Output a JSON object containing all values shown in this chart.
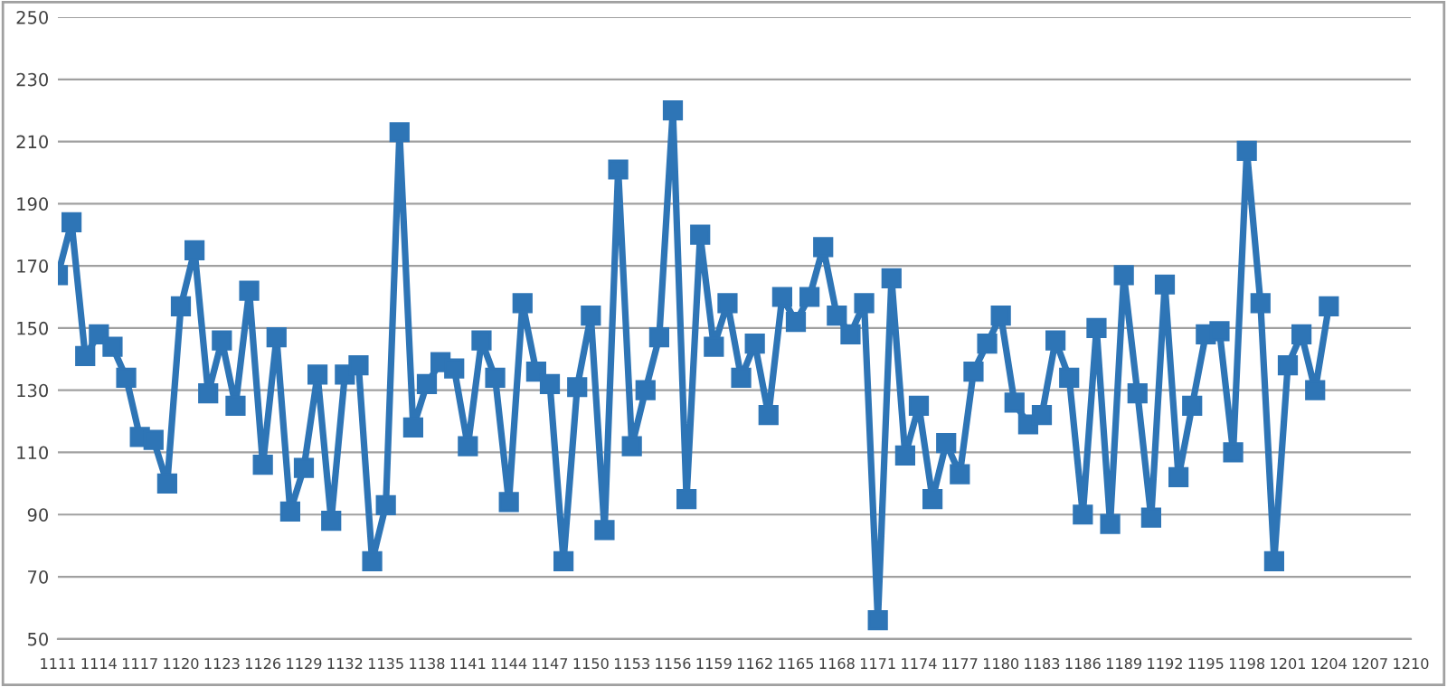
{
  "chart_data": {
    "type": "line",
    "x": [
      1111,
      1112,
      1113,
      1114,
      1115,
      1116,
      1117,
      1118,
      1119,
      1120,
      1121,
      1122,
      1123,
      1124,
      1125,
      1126,
      1127,
      1128,
      1129,
      1130,
      1131,
      1132,
      1133,
      1134,
      1135,
      1136,
      1137,
      1138,
      1139,
      1140,
      1141,
      1142,
      1143,
      1144,
      1145,
      1146,
      1147,
      1148,
      1149,
      1150,
      1151,
      1152,
      1153,
      1154,
      1155,
      1156,
      1157,
      1158,
      1159,
      1160,
      1161,
      1162,
      1163,
      1164,
      1165,
      1166,
      1167,
      1168,
      1169,
      1170,
      1171,
      1172,
      1173,
      1174,
      1175,
      1176,
      1177,
      1178,
      1179,
      1180,
      1181,
      1182,
      1183,
      1184,
      1185,
      1186,
      1187,
      1188,
      1189,
      1190,
      1191,
      1192,
      1193,
      1194,
      1195,
      1196,
      1197,
      1198,
      1199,
      1200,
      1201,
      1202,
      1203,
      1204
    ],
    "series": [
      {
        "color": "#2e75b6",
        "values": [
          167,
          184,
          141,
          148,
          144,
          134,
          115,
          114,
          100,
          157,
          175,
          129,
          146,
          125,
          162,
          106,
          147,
          91,
          105,
          135,
          88,
          135,
          138,
          75,
          93,
          213,
          118,
          132,
          139,
          137,
          112,
          146,
          134,
          94,
          158,
          136,
          132,
          75,
          131,
          154,
          85,
          201,
          112,
          130,
          147,
          220,
          95,
          180,
          144,
          158,
          134,
          145,
          122,
          160,
          152,
          160,
          176,
          154,
          148,
          158,
          56,
          166,
          109,
          125,
          95,
          113,
          103,
          136,
          145,
          154,
          126,
          119,
          122,
          146,
          134,
          90,
          150,
          87,
          167,
          129,
          89,
          164,
          102,
          125,
          148,
          149,
          110,
          207,
          158,
          75,
          138,
          148,
          130,
          157
        ]
      }
    ],
    "xlim": [
      1111,
      1210
    ],
    "xticks": [
      1111,
      1114,
      1117,
      1120,
      1123,
      1126,
      1129,
      1132,
      1135,
      1138,
      1141,
      1144,
      1147,
      1150,
      1153,
      1156,
      1159,
      1162,
      1165,
      1168,
      1171,
      1174,
      1177,
      1180,
      1183,
      1186,
      1189,
      1192,
      1195,
      1198,
      1201,
      1204,
      1207,
      1210
    ],
    "ylim": [
      50,
      250
    ],
    "yticks": [
      50,
      70,
      90,
      110,
      130,
      150,
      170,
      190,
      210,
      230,
      250
    ],
    "grid": "y",
    "marker": "square",
    "line_style": "solid"
  }
}
